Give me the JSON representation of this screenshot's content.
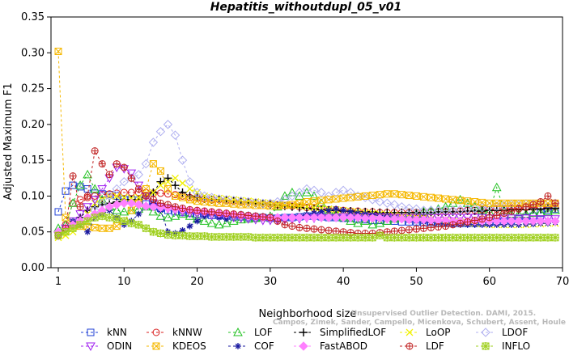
{
  "chart_data": {
    "type": "line",
    "title": "Hepatitis_withoutdupl_05_v01",
    "xlabel": "Neighborhood size",
    "ylabel": "Adjusted Maximum F1",
    "xlim": [
      0,
      70
    ],
    "ylim": [
      0,
      0.35
    ],
    "xticks": [
      "1",
      "10",
      "20",
      "30",
      "40",
      "50",
      "60",
      "70"
    ],
    "yticks": [
      "0.00",
      "0.05",
      "0.10",
      "0.15",
      "0.20",
      "0.25",
      "0.30",
      "0.35"
    ],
    "watermark_line1": "Unsupervised Outlier Detection. DAMI, 2015.",
    "watermark_line2": "Campos, Zimek, Sander, Campello, Micenkova, Schubert, Assent, Houle",
    "x": [
      1,
      2,
      3,
      4,
      5,
      6,
      7,
      8,
      9,
      10,
      11,
      12,
      13,
      14,
      15,
      16,
      17,
      18,
      19,
      20,
      21,
      22,
      23,
      24,
      25,
      26,
      27,
      28,
      29,
      30,
      31,
      32,
      33,
      34,
      35,
      36,
      37,
      38,
      39,
      40,
      41,
      42,
      43,
      44,
      45,
      46,
      47,
      48,
      49,
      50,
      51,
      52,
      53,
      54,
      55,
      56,
      57,
      58,
      59,
      60,
      61,
      62,
      63,
      64,
      65,
      66,
      67,
      68,
      69
    ],
    "series": [
      {
        "name": "kNN",
        "color": "#1f3fd6",
        "marker": "square",
        "values": [
          0.078,
          0.107,
          0.115,
          0.113,
          0.11,
          0.104,
          0.103,
          0.102,
          0.1,
          0.095,
          0.095,
          0.094,
          0.089,
          0.085,
          0.083,
          0.08,
          0.078,
          0.077,
          0.076,
          0.075,
          0.074,
          0.073,
          0.073,
          0.072,
          0.071,
          0.071,
          0.07,
          0.07,
          0.07,
          0.069,
          0.069,
          0.07,
          0.07,
          0.071,
          0.072,
          0.072,
          0.071,
          0.07,
          0.07,
          0.069,
          0.069,
          0.068,
          0.067,
          0.066,
          0.066,
          0.065,
          0.065,
          0.064,
          0.064,
          0.064,
          0.063,
          0.063,
          0.062,
          0.062,
          0.062,
          0.062,
          0.062,
          0.062,
          0.063,
          0.063,
          0.064,
          0.065,
          0.066,
          0.068,
          0.07,
          0.072,
          0.076,
          0.08,
          0.082
        ]
      },
      {
        "name": "kNNW",
        "color": "#d91f1f",
        "marker": "circle",
        "values": [
          0.045,
          0.06,
          0.09,
          0.095,
          0.098,
          0.1,
          0.102,
          0.103,
          0.104,
          0.105,
          0.105,
          0.105,
          0.105,
          0.104,
          0.104,
          0.103,
          0.102,
          0.1,
          0.098,
          0.097,
          0.096,
          0.095,
          0.095,
          0.094,
          0.093,
          0.092,
          0.092,
          0.091,
          0.09,
          0.089,
          0.088,
          0.087,
          0.086,
          0.085,
          0.084,
          0.083,
          0.082,
          0.081,
          0.081,
          0.08,
          0.079,
          0.079,
          0.078,
          0.078,
          0.077,
          0.077,
          0.077,
          0.077,
          0.077,
          0.077,
          0.077,
          0.078,
          0.078,
          0.078,
          0.079,
          0.079,
          0.08,
          0.08,
          0.081,
          0.081,
          0.082,
          0.082,
          0.083,
          0.083,
          0.084,
          0.084,
          0.085,
          0.085,
          0.085
        ]
      },
      {
        "name": "LOF",
        "color": "#20c020",
        "marker": "triangle",
        "values": [
          0.055,
          0.06,
          0.09,
          0.115,
          0.13,
          0.11,
          0.095,
          0.085,
          0.08,
          0.078,
          0.08,
          0.082,
          0.085,
          0.078,
          0.072,
          0.07,
          0.072,
          0.075,
          0.072,
          0.068,
          0.065,
          0.062,
          0.06,
          0.062,
          0.065,
          0.067,
          0.068,
          0.069,
          0.07,
          0.072,
          0.085,
          0.1,
          0.105,
          0.1,
          0.105,
          0.1,
          0.09,
          0.08,
          0.075,
          0.07,
          0.065,
          0.062,
          0.065,
          0.06,
          0.062,
          0.065,
          0.068,
          0.07,
          0.072,
          0.075,
          0.078,
          0.08,
          0.082,
          0.085,
          0.09,
          0.095,
          0.09,
          0.085,
          0.08,
          0.078,
          0.112,
          0.08,
          0.075,
          0.075,
          0.075,
          0.076,
          0.077,
          0.078,
          0.08
        ]
      },
      {
        "name": "SimplifiedLOF",
        "color": "#000000",
        "marker": "plus",
        "values": [
          0.05,
          0.055,
          0.06,
          0.07,
          0.08,
          0.085,
          0.088,
          0.09,
          0.092,
          0.095,
          0.095,
          0.095,
          0.1,
          0.105,
          0.12,
          0.125,
          0.115,
          0.105,
          0.1,
          0.098,
          0.096,
          0.095,
          0.095,
          0.094,
          0.093,
          0.092,
          0.091,
          0.09,
          0.089,
          0.088,
          0.087,
          0.086,
          0.085,
          0.084,
          0.083,
          0.082,
          0.081,
          0.08,
          0.08,
          0.079,
          0.079,
          0.078,
          0.078,
          0.078,
          0.077,
          0.077,
          0.077,
          0.077,
          0.077,
          0.077,
          0.077,
          0.077,
          0.078,
          0.078,
          0.078,
          0.078,
          0.079,
          0.079,
          0.079,
          0.08,
          0.08,
          0.08,
          0.081,
          0.081,
          0.081,
          0.082,
          0.082,
          0.083,
          0.083
        ]
      },
      {
        "name": "LoOP",
        "color": "#f0f000",
        "marker": "x",
        "values": [
          0.042,
          0.045,
          0.05,
          0.06,
          0.075,
          0.09,
          0.095,
          0.1,
          0.1,
          0.098,
          0.097,
          0.098,
          0.1,
          0.105,
          0.115,
          0.12,
          0.125,
          0.118,
          0.11,
          0.105,
          0.1,
          0.098,
          0.097,
          0.096,
          0.095,
          0.094,
          0.093,
          0.092,
          0.091,
          0.09,
          0.089,
          0.088,
          0.087,
          0.086,
          0.085,
          0.084,
          0.083,
          0.082,
          0.081,
          0.08,
          0.079,
          0.078,
          0.077,
          0.076,
          0.075,
          0.074,
          0.073,
          0.072,
          0.071,
          0.07,
          0.069,
          0.068,
          0.067,
          0.066,
          0.065,
          0.064,
          0.063,
          0.062,
          0.061,
          0.06,
          0.06,
          0.06,
          0.06,
          0.06,
          0.06,
          0.061,
          0.061,
          0.062,
          0.062
        ]
      },
      {
        "name": "LDOF",
        "color": "#b0b0f0",
        "marker": "diamond",
        "values": [
          0.05,
          0.055,
          0.06,
          0.065,
          0.07,
          0.08,
          0.09,
          0.1,
          0.11,
          0.12,
          0.125,
          0.13,
          0.145,
          0.175,
          0.19,
          0.2,
          0.185,
          0.15,
          0.12,
          0.105,
          0.1,
          0.098,
          0.096,
          0.095,
          0.094,
          0.093,
          0.092,
          0.091,
          0.09,
          0.09,
          0.092,
          0.095,
          0.1,
          0.105,
          0.11,
          0.108,
          0.105,
          0.1,
          0.105,
          0.108,
          0.105,
          0.1,
          0.098,
          0.095,
          0.092,
          0.09,
          0.088,
          0.085,
          0.083,
          0.082,
          0.08,
          0.08,
          0.08,
          0.08,
          0.08,
          0.081,
          0.082,
          0.083,
          0.084,
          0.085,
          0.086,
          0.087,
          0.088,
          0.088,
          0.089,
          0.089,
          0.09,
          0.09,
          0.09
        ]
      },
      {
        "name": "ODIN",
        "color": "#a020f0",
        "marker": "triangle-down",
        "values": [
          0.045,
          0.055,
          0.065,
          0.075,
          0.085,
          0.095,
          0.11,
          0.125,
          0.14,
          0.138,
          0.132,
          0.115,
          0.1,
          0.09,
          0.085,
          0.082,
          0.08,
          0.078,
          0.076,
          0.075,
          0.074,
          0.073,
          0.072,
          0.071,
          0.07,
          0.069,
          0.068,
          0.067,
          0.066,
          0.066,
          0.066,
          0.067,
          0.068,
          0.068,
          0.069,
          0.069,
          0.07,
          0.07,
          0.07,
          0.071,
          0.071,
          0.071,
          0.071,
          0.071,
          0.071,
          0.071,
          0.07,
          0.07,
          0.07,
          0.07,
          0.07,
          0.07,
          0.07,
          0.07,
          0.07,
          0.07,
          0.07,
          0.07,
          0.07,
          0.069,
          0.069,
          0.069,
          0.069,
          0.069,
          0.069,
          0.068,
          0.068,
          0.068,
          0.068
        ]
      },
      {
        "name": "KDEOS",
        "color": "#f5b800",
        "marker": "square-x",
        "values": [
          0.302,
          0.07,
          0.06,
          0.058,
          0.057,
          0.056,
          0.055,
          0.055,
          0.058,
          0.065,
          0.08,
          0.09,
          0.11,
          0.145,
          0.135,
          0.11,
          0.1,
          0.098,
          0.095,
          0.093,
          0.092,
          0.091,
          0.09,
          0.09,
          0.089,
          0.088,
          0.088,
          0.087,
          0.087,
          0.086,
          0.086,
          0.087,
          0.088,
          0.09,
          0.092,
          0.093,
          0.094,
          0.095,
          0.096,
          0.097,
          0.098,
          0.099,
          0.1,
          0.101,
          0.102,
          0.103,
          0.103,
          0.102,
          0.101,
          0.1,
          0.099,
          0.098,
          0.097,
          0.096,
          0.095,
          0.094,
          0.093,
          0.092,
          0.091,
          0.09,
          0.09,
          0.09,
          0.09,
          0.09,
          0.09,
          0.09,
          0.09,
          0.09,
          0.09
        ]
      },
      {
        "name": "COF",
        "color": "#1a1aa0",
        "marker": "asterisk",
        "values": [
          0.05,
          0.055,
          0.065,
          0.06,
          0.05,
          0.07,
          0.075,
          0.08,
          0.07,
          0.06,
          0.065,
          0.075,
          0.085,
          0.09,
          0.08,
          0.05,
          0.048,
          0.052,
          0.058,
          0.065,
          0.072,
          0.075,
          0.07,
          0.068,
          0.072,
          0.075,
          0.074,
          0.073,
          0.072,
          0.071,
          0.07,
          0.07,
          0.071,
          0.072,
          0.074,
          0.076,
          0.078,
          0.08,
          0.082,
          0.08,
          0.078,
          0.076,
          0.075,
          0.074,
          0.073,
          0.072,
          0.07,
          0.068,
          0.066,
          0.065,
          0.064,
          0.063,
          0.062,
          0.061,
          0.06,
          0.06,
          0.06,
          0.06,
          0.06,
          0.06,
          0.06,
          0.06,
          0.06,
          0.06,
          0.061,
          0.061,
          0.062,
          0.062,
          0.063
        ]
      },
      {
        "name": "FastABOD",
        "color": "#ff80ff",
        "marker": "diamond-filled",
        "values": [
          0.05,
          0.055,
          0.06,
          0.065,
          0.07,
          0.075,
          0.08,
          0.085,
          0.088,
          0.09,
          0.09,
          0.088,
          0.086,
          0.085,
          0.084,
          0.083,
          0.082,
          0.081,
          0.08,
          0.079,
          0.078,
          0.077,
          0.076,
          0.075,
          0.074,
          0.073,
          0.072,
          0.071,
          0.07,
          0.07,
          0.07,
          0.07,
          0.07,
          0.07,
          0.07,
          0.07,
          0.07,
          0.07,
          0.07,
          0.07,
          0.07,
          0.07,
          0.069,
          0.069,
          0.069,
          0.068,
          0.068,
          0.068,
          0.067,
          0.067,
          0.067,
          0.066,
          0.066,
          0.066,
          0.065,
          0.065,
          0.065,
          0.065,
          0.065,
          0.065,
          0.065,
          0.065,
          0.065,
          0.065,
          0.065,
          0.065,
          0.065,
          0.065,
          0.065
        ]
      },
      {
        "name": "LDF",
        "color": "#c02020",
        "marker": "circle-plus",
        "values": [
          0.045,
          0.055,
          0.128,
          0.085,
          0.1,
          0.163,
          0.145,
          0.13,
          0.145,
          0.14,
          0.125,
          0.11,
          0.1,
          0.095,
          0.09,
          0.088,
          0.085,
          0.083,
          0.081,
          0.08,
          0.079,
          0.078,
          0.077,
          0.076,
          0.075,
          0.074,
          0.073,
          0.072,
          0.071,
          0.07,
          0.065,
          0.06,
          0.058,
          0.056,
          0.055,
          0.054,
          0.053,
          0.052,
          0.051,
          0.05,
          0.049,
          0.048,
          0.048,
          0.048,
          0.049,
          0.05,
          0.051,
          0.052,
          0.053,
          0.054,
          0.055,
          0.056,
          0.057,
          0.058,
          0.06,
          0.062,
          0.064,
          0.066,
          0.068,
          0.07,
          0.073,
          0.076,
          0.079,
          0.082,
          0.085,
          0.088,
          0.092,
          0.1,
          0.09
        ]
      },
      {
        "name": "INFLO",
        "color": "#a0d020",
        "marker": "star",
        "values": [
          0.045,
          0.05,
          0.055,
          0.06,
          0.065,
          0.07,
          0.072,
          0.07,
          0.068,
          0.065,
          0.062,
          0.06,
          0.055,
          0.05,
          0.048,
          0.046,
          0.045,
          0.045,
          0.044,
          0.044,
          0.044,
          0.043,
          0.043,
          0.043,
          0.043,
          0.043,
          0.043,
          0.042,
          0.042,
          0.042,
          0.042,
          0.042,
          0.042,
          0.042,
          0.042,
          0.042,
          0.042,
          0.042,
          0.042,
          0.042,
          0.042,
          0.042,
          0.042,
          0.042,
          0.045,
          0.042,
          0.042,
          0.042,
          0.042,
          0.042,
          0.042,
          0.042,
          0.042,
          0.042,
          0.042,
          0.042,
          0.042,
          0.042,
          0.042,
          0.042,
          0.042,
          0.042,
          0.042,
          0.042,
          0.042,
          0.042,
          0.042,
          0.042,
          0.042
        ]
      }
    ],
    "legend_placement": "bottom",
    "grid": false
  }
}
